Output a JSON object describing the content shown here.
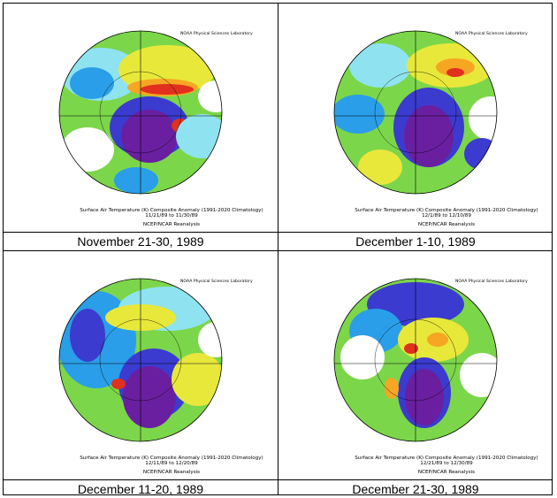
{
  "panels": [
    {
      "caption": "November 21-30, 1989",
      "title": "Surface Air Temperature (K) Composite Anomaly (1991-2020 Climatology)",
      "dates": "11/21/89  to 11/30/89",
      "source": "NCEP/NCAR Reanalysis",
      "credit": "NOAA Physical Sciences Laboratory"
    },
    {
      "caption": "December 1-10, 1989",
      "title": "Surface Air Temperature (K) Composite Anomaly (1991-2020 Climatology)",
      "dates": "12/1/89  to 12/10/89",
      "source": "NCEP/NCAR Reanalysis",
      "credit": "NOAA Physical Sciences Laboratory"
    },
    {
      "caption": "December 11-20, 1989",
      "title": "Surface Air Temperature (K) Composite Anomaly (1991-2020 Climatology)",
      "dates": "12/11/89  to 12/20/89",
      "source": "NCEP/NCAR Reanalysis",
      "credit": "NOAA Physical Sciences Laboratory"
    },
    {
      "caption": "December 21-30, 1989",
      "title": "Surface Air Temperature (K) Composite Anomaly (1991-2020 Climatology)",
      "dates": "12/21/89  to 12/30/89",
      "source": "NCEP/NCAR Reanalysis",
      "credit": "NOAA Physical Sciences Laboratory"
    }
  ],
  "colors": {
    "cold_extreme": "#6a1fa0",
    "cold_strong": "#3b3bd0",
    "cold": "#2a9ee8",
    "cool": "#8fe3f0",
    "neutral": "#ffffff",
    "mild": "#7cd64a",
    "warm": "#e8e83a",
    "warmer": "#f6a623",
    "hot": "#e0301e",
    "hottest": "#b0204e"
  }
}
